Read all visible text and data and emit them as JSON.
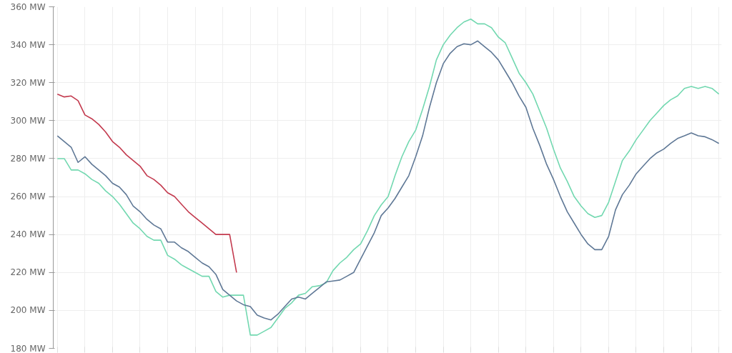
{
  "chart_data": {
    "type": "line",
    "categories": [
      null,
      null,
      null,
      null,
      null,
      null,
      null,
      null,
      null,
      null,
      null,
      null,
      null,
      null,
      null,
      null,
      null,
      null,
      null,
      null,
      null,
      null,
      null,
      null,
      null,
      null,
      null,
      null,
      null,
      null,
      null,
      null,
      null,
      null,
      null,
      null,
      null,
      null,
      null,
      null,
      null,
      null,
      null,
      null,
      null,
      null,
      null,
      null,
      null,
      null,
      null,
      null,
      null,
      null,
      null,
      null,
      null,
      null,
      null,
      null,
      null,
      null,
      null,
      null,
      null,
      null,
      null,
      null,
      null,
      null,
      null,
      null,
      null,
      null,
      null,
      null,
      null,
      null,
      null,
      null,
      null,
      null,
      null,
      null,
      null,
      null,
      null,
      null,
      null,
      null,
      null,
      null,
      null,
      null,
      null,
      null,
      null
    ],
    "series": [
      {
        "color": "#72d8b0",
        "values": [
          280,
          280,
          274,
          274,
          272,
          269,
          267,
          263,
          260,
          256,
          251,
          246,
          243,
          239,
          237,
          237,
          229,
          227,
          224,
          222,
          220,
          218,
          218,
          210,
          207,
          208,
          208,
          208,
          187,
          187,
          189,
          191,
          196,
          201,
          204,
          208,
          209,
          212.5,
          213,
          214.5,
          221,
          225,
          228,
          232,
          235,
          242,
          250,
          255.6,
          260,
          271,
          281,
          289,
          295,
          306,
          318,
          332,
          340,
          345,
          349,
          352,
          353.5,
          351,
          351,
          349,
          344,
          341,
          333,
          325,
          320,
          314,
          305,
          296,
          285,
          275,
          268,
          260,
          255,
          251,
          249,
          250,
          257,
          268,
          279,
          284,
          290,
          295,
          300,
          304,
          308,
          311,
          313,
          317,
          318,
          317,
          318,
          317,
          314
        ]
      },
      {
        "color": "#5f7896",
        "values": [
          292,
          289,
          286,
          278,
          281,
          277,
          274,
          271,
          267,
          265,
          261,
          255,
          252,
          248,
          245,
          243,
          236,
          236,
          233,
          231,
          228,
          225,
          223,
          219,
          211,
          208,
          205,
          203,
          202,
          197.5,
          196,
          195,
          198,
          202,
          206,
          207,
          206,
          209,
          212,
          215,
          215.5,
          216,
          218,
          220,
          227,
          234,
          241,
          250,
          254,
          259,
          265,
          271,
          281,
          292,
          307,
          320,
          330,
          335.5,
          339,
          340.5,
          340,
          342,
          339,
          336,
          332,
          326,
          320,
          313,
          307,
          296,
          287,
          277,
          269,
          260,
          252,
          246,
          240,
          235,
          232,
          232,
          239,
          253,
          261,
          266,
          272,
          276,
          280,
          283,
          285,
          288,
          290.6,
          292,
          293.5,
          292,
          291.5,
          290,
          288
        ]
      },
      {
        "color": "#c33a4e",
        "values": [
          314,
          312.5,
          313,
          310.5,
          303,
          301,
          298,
          294,
          289,
          286,
          282,
          279,
          276,
          271,
          269,
          266,
          262,
          260,
          256,
          252,
          249,
          246,
          243,
          240,
          240,
          240,
          220,
          null,
          null,
          null,
          null,
          null,
          null,
          null,
          null,
          null,
          null,
          null,
          null,
          null,
          null,
          null,
          null,
          null,
          null,
          null,
          null,
          null,
          null,
          null,
          null,
          null,
          null,
          null,
          null,
          null,
          null,
          null,
          null,
          null,
          null,
          null,
          null,
          null,
          null,
          null,
          null,
          null,
          null,
          null,
          null,
          null,
          null,
          null,
          null,
          null,
          null,
          null,
          null,
          null,
          null,
          null,
          null,
          null,
          null,
          null,
          null,
          null,
          null,
          null,
          null,
          null,
          null,
          null,
          null,
          null,
          null
        ]
      }
    ],
    "ylim": [
      180,
      360
    ],
    "yticks": [
      {
        "value": 180,
        "label": "180 MW"
      },
      {
        "value": 200,
        "label": "200 MW"
      },
      {
        "value": 220,
        "label": "220 MW"
      },
      {
        "value": 240,
        "label": "240 MW"
      },
      {
        "value": 260,
        "label": "260 MW"
      },
      {
        "value": 280,
        "label": "280 MW"
      },
      {
        "value": 300,
        "label": "300 MW"
      },
      {
        "value": 320,
        "label": "320 MW"
      },
      {
        "value": 340,
        "label": "340 MW"
      },
      {
        "value": 360,
        "label": "360 MW"
      }
    ],
    "grid": true,
    "tick_labels": "y"
  }
}
